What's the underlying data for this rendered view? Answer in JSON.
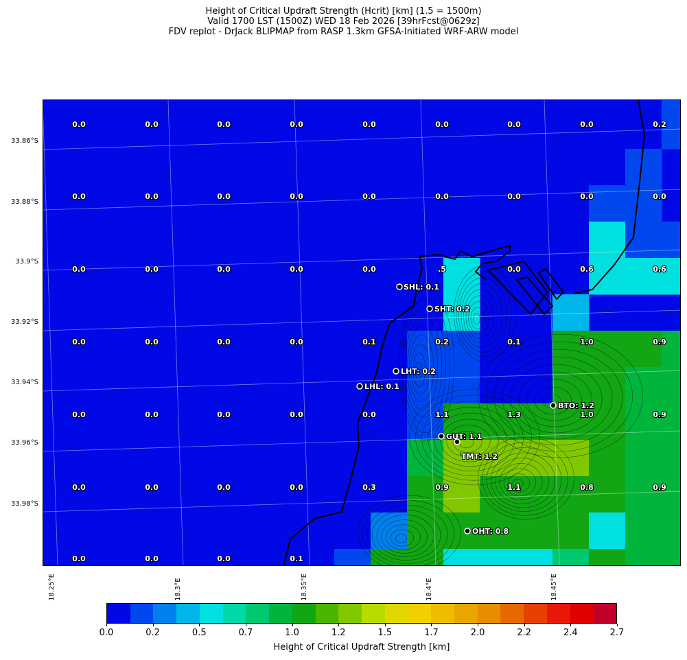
{
  "title": {
    "line1": "Height of Critical Updraft Strength (Hcrit) [km] (1.5 = 1500m)",
    "line2": "Valid 1700 LST (1500Z) WED 18 Feb 2026 [39hrFcst@0629z]",
    "line3": "FDV replot - DrJack BLIPMAP from RASP 1.3km GFSA-Initiated WRF-ARW model"
  },
  "chart_data": {
    "type": "heatmap",
    "units": "km",
    "lat_ticks": [
      "33.86°S",
      "33.88°S",
      "33.9°S",
      "33.92°S",
      "33.94°S",
      "33.96°S",
      "33.98°S"
    ],
    "lon_ticks": [
      "18.25°E",
      "18.3°E",
      "18.35°E",
      "18.4°E",
      "18.45°E"
    ],
    "colorbar": {
      "label": "Height of Critical Updraft Strength [km]",
      "ticks": [
        "0.0",
        "0.2",
        "0.5",
        "0.7",
        "1.0",
        "1.2",
        "1.5",
        "1.7",
        "2.0",
        "2.2",
        "2.4",
        "2.7"
      ],
      "colors": [
        "#0008e6",
        "#0048ee",
        "#0080ea",
        "#00b6ea",
        "#00e0e0",
        "#00d8a8",
        "#00c870",
        "#00b43c",
        "#12a614",
        "#4ab400",
        "#82c800",
        "#b8dc00",
        "#e0d800",
        "#f0d000",
        "#f0bc00",
        "#e8a600",
        "#e88c00",
        "#e86800",
        "#e84000",
        "#e81808",
        "#e00000",
        "#c0002a"
      ]
    },
    "grid_values": [
      [
        0.0,
        0.0,
        0.0,
        0.0,
        0.0,
        0.0,
        0.0,
        0.0,
        0.0,
        0.0,
        0.0,
        0.0,
        0.0,
        0.0,
        0.0,
        0.0,
        0.0,
        0.2
      ],
      [
        0.0,
        0.0,
        0.0,
        0.0,
        0.0,
        0.0,
        0.0,
        0.0,
        0.0,
        0.0,
        0.0,
        0.0,
        0.0,
        0.0,
        0.0,
        0.0,
        0.0,
        0.2
      ],
      [
        0.0,
        0.0,
        0.0,
        0.0,
        0.0,
        0.0,
        0.0,
        0.0,
        0.0,
        0.0,
        0.0,
        0.0,
        0.0,
        0.0,
        0.0,
        0.0,
        0.2,
        0.0
      ],
      [
        0.0,
        0.0,
        0.0,
        0.0,
        0.0,
        0.0,
        0.0,
        0.0,
        0.0,
        0.0,
        0.0,
        0.0,
        0.0,
        0.0,
        0.0,
        0.2,
        0.2,
        0.0
      ],
      [
        0.0,
        0.0,
        0.0,
        0.0,
        0.0,
        0.0,
        0.0,
        0.0,
        0.0,
        0.0,
        0.0,
        0.0,
        0.0,
        0.0,
        0.0,
        0.6,
        0.2,
        0.2
      ],
      [
        0.0,
        0.0,
        0.0,
        0.0,
        0.0,
        0.0,
        0.0,
        0.0,
        0.0,
        0.0,
        0.0,
        0.5,
        0.0,
        0.0,
        0.0,
        0.6,
        0.6,
        0.6
      ],
      [
        0.0,
        0.0,
        0.0,
        0.0,
        0.0,
        0.0,
        0.0,
        0.0,
        0.0,
        0.0,
        0.0,
        0.5,
        0.0,
        0.0,
        0.4,
        0.0,
        0.0,
        0.0
      ],
      [
        0.0,
        0.0,
        0.0,
        0.0,
        0.0,
        0.0,
        0.0,
        0.0,
        0.0,
        0.1,
        0.2,
        0.2,
        0.1,
        0.1,
        1.0,
        1.0,
        1.0,
        0.9
      ],
      [
        0.0,
        0.0,
        0.0,
        0.0,
        0.0,
        0.0,
        0.0,
        0.0,
        0.0,
        0.1,
        0.2,
        0.2,
        0.1,
        0.1,
        1.0,
        1.0,
        0.9,
        0.9
      ],
      [
        0.0,
        0.0,
        0.0,
        0.0,
        0.0,
        0.0,
        0.0,
        0.0,
        0.0,
        0.0,
        0.2,
        1.0,
        1.1,
        1.0,
        1.0,
        1.0,
        0.9,
        0.9
      ],
      [
        0.0,
        0.0,
        0.0,
        0.0,
        0.0,
        0.0,
        0.0,
        0.0,
        0.0,
        0.0,
        0.9,
        1.3,
        1.3,
        1.3,
        1.3,
        1.0,
        0.9,
        0.9
      ],
      [
        0.0,
        0.0,
        0.0,
        0.0,
        0.0,
        0.0,
        0.0,
        0.0,
        0.0,
        0.0,
        1.0,
        1.3,
        1.1,
        1.1,
        1.0,
        1.0,
        0.9,
        0.9
      ],
      [
        0.0,
        0.0,
        0.0,
        0.0,
        0.0,
        0.0,
        0.0,
        0.0,
        0.0,
        0.3,
        1.0,
        1.0,
        1.0,
        1.1,
        1.0,
        0.6,
        0.9,
        0.9
      ],
      [
        0.0,
        0.0,
        0.0,
        0.0,
        0.0,
        0.0,
        0.0,
        0.0,
        0.2,
        1.0,
        1.0,
        0.5,
        0.6,
        0.6,
        0.8,
        1.0,
        0.9,
        0.9
      ],
      [
        0.0,
        0.0,
        0.0,
        0.0,
        0.0,
        0.0,
        0.0,
        0.1,
        0.2,
        0.7,
        1.0,
        0.6,
        0.7,
        0.6,
        0.8,
        1.0,
        0.9,
        0.9
      ]
    ],
    "cell_labels": [
      [
        "0.0",
        "0.0",
        "0.0",
        "0.0",
        "0.0",
        "0.0",
        "0.0",
        "0.0",
        "0.2"
      ],
      [
        "0.0",
        "0.0",
        "0.0",
        "0.0",
        "0.0",
        "0.0",
        "0.0",
        "0.0",
        "0.0"
      ],
      [
        "0.0",
        "0.0",
        "0.0",
        "0.0",
        "0.0",
        ".5",
        "0.0",
        "0.6",
        "0.6"
      ],
      [
        "0.0",
        "0.0",
        "0.0",
        "0.0",
        "0.1",
        "0.2",
        "0.1",
        "1.0",
        "0.9"
      ],
      [
        "0.0",
        "0.0",
        "0.0",
        "0.0",
        "0.0",
        "1.1",
        "1.3",
        "1.0",
        "0.9"
      ],
      [
        "0.0",
        "0.0",
        "0.0",
        "0.0",
        "0.3",
        "0.9",
        "1.1",
        "0.8",
        "0.9"
      ],
      [
        "0.0",
        "0.0",
        "0.0",
        "0.1",
        "",
        "",
        "",
        "",
        ""
      ]
    ],
    "sites": [
      {
        "label": "SHL: 0.1"
      },
      {
        "label": "SHT: 0.2"
      },
      {
        "label": "LHT: 0.2"
      },
      {
        "label": "LHL: 0.1"
      },
      {
        "label": "BTO: 1.2"
      },
      {
        "label": "GUT: 1.1"
      },
      {
        "label": "TMT: 1.2"
      },
      {
        "label": "OHT: 0.8"
      }
    ]
  }
}
